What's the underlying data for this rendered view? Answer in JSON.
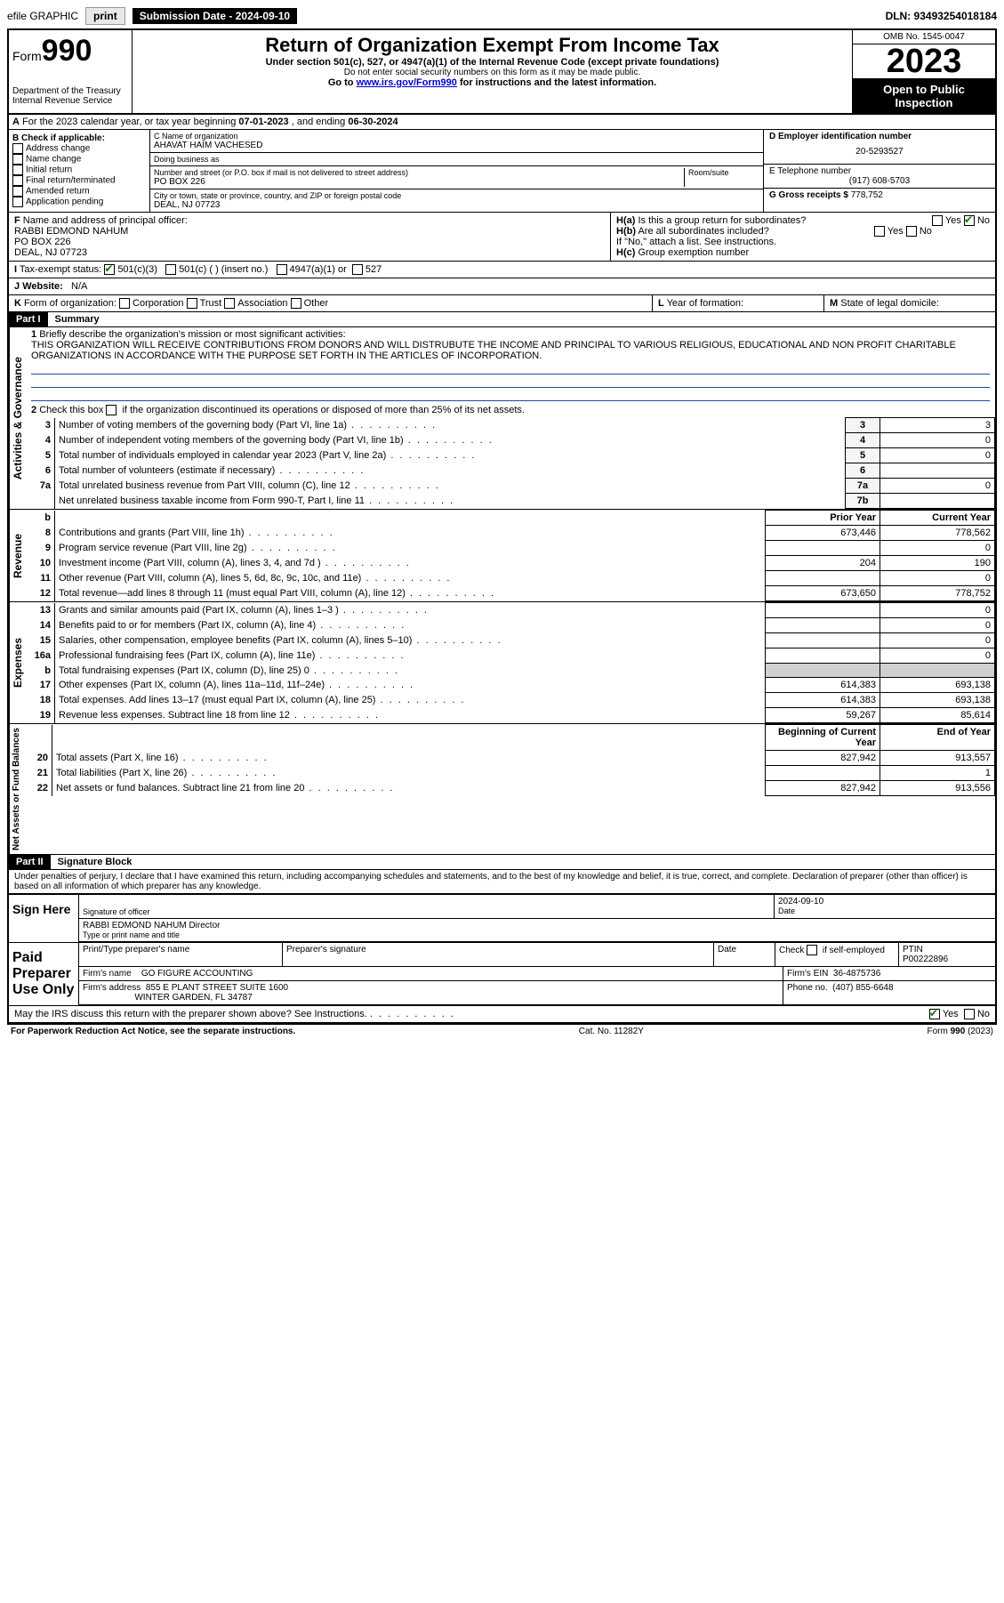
{
  "topbar": {
    "efile": "efile GRAPHIC",
    "print": "print",
    "submission": "Submission Date - 2024-09-10",
    "dln": "DLN: 93493254018184"
  },
  "header": {
    "form_prefix": "Form",
    "form_number": "990",
    "dept": "Department of the Treasury",
    "irs": "Internal Revenue Service",
    "title": "Return of Organization Exempt From Income Tax",
    "sub1": "Under section 501(c), 527, or 4947(a)(1) of the Internal Revenue Code (except private foundations)",
    "sub2": "Do not enter social security numbers on this form as it may be made public.",
    "sub3_pre": "Go to ",
    "sub3_link": "www.irs.gov/Form990",
    "sub3_post": " for instructions and the latest information.",
    "omb": "OMB No. 1545-0047",
    "year": "2023",
    "inspection": "Open to Public Inspection"
  },
  "row_a": {
    "label": "A",
    "text_pre": "For the 2023 calendar year, or tax year beginning ",
    "begin": "07-01-2023",
    "mid": " , and ending ",
    "end": "06-30-2024"
  },
  "col_b": {
    "label": "B Check if applicable:",
    "items": [
      "Address change",
      "Name change",
      "Initial return",
      "Final return/terminated",
      "Amended return",
      "Application pending"
    ]
  },
  "col_c": {
    "name_label": "C Name of organization",
    "name": "AHAVAT HAIM VACHESED",
    "dba_label": "Doing business as",
    "dba": "",
    "addr_label": "Number and street (or P.O. box if mail is not delivered to street address)",
    "room_label": "Room/suite",
    "addr": "PO BOX 226",
    "city_label": "City or town, state or province, country, and ZIP or foreign postal code",
    "city": "DEAL, NJ  07723"
  },
  "col_d": {
    "ein_label": "D Employer identification number",
    "ein": "20-5293527",
    "tel_label": "E Telephone number",
    "tel": "(917) 608-5703",
    "gross_label": "G Gross receipts $",
    "gross": "778,752"
  },
  "row_f": {
    "label": "F",
    "text": "Name and address of principal officer:",
    "name": "RABBI EDMOND NAHUM",
    "addr1": "PO BOX 226",
    "addr2": "DEAL, NJ  07723"
  },
  "row_h": {
    "ha_label": "H(a)",
    "ha_text": "Is this a group return for subordinates?",
    "ha_yes": "Yes",
    "ha_no": "No",
    "hb_label": "H(b)",
    "hb_text": "Are all subordinates included?",
    "hb_note": "If \"No,\" attach a list. See instructions.",
    "hc_label": "H(c)",
    "hc_text": "Group exemption number"
  },
  "row_i": {
    "label": "I",
    "text": "Tax-exempt status:",
    "opt1": "501(c)(3)",
    "opt2": "501(c) (  ) (insert no.)",
    "opt3": "4947(a)(1) or",
    "opt4": "527"
  },
  "row_j": {
    "label": "J",
    "text": "Website:",
    "val": "N/A"
  },
  "row_k": {
    "label": "K",
    "text": "Form of organization:",
    "opts": [
      "Corporation",
      "Trust",
      "Association",
      "Other"
    ]
  },
  "row_l": {
    "label": "L",
    "text": "Year of formation:"
  },
  "row_m": {
    "label": "M",
    "text": "State of legal domicile:"
  },
  "part1": {
    "header": "Part I",
    "title": "Summary"
  },
  "summary": {
    "q1_label": "1",
    "q1_text": "Briefly describe the organization's mission or most significant activities:",
    "q1_val": "THIS ORGANIZATION WILL RECEIVE CONTRIBUTIONS FROM DONORS AND WILL DISTRUBUTE THE INCOME AND PRINCIPAL TO VARIOUS RELIGIOUS, EDUCATIONAL AND NON PROFIT CHARITABLE ORGANIZATIONS IN ACCORDANCE WITH THE PURPOSE SET FORTH IN THE ARTICLES OF INCORPORATION.",
    "q2_label": "2",
    "q2_text": "Check this box      if the organization discontinued its operations or disposed of more than 25% of its net assets."
  },
  "gov_rows": [
    {
      "n": "3",
      "desc": "Number of voting members of the governing body (Part VI, line 1a)",
      "box": "3",
      "val": "3"
    },
    {
      "n": "4",
      "desc": "Number of independent voting members of the governing body (Part VI, line 1b)",
      "box": "4",
      "val": "0"
    },
    {
      "n": "5",
      "desc": "Total number of individuals employed in calendar year 2023 (Part V, line 2a)",
      "box": "5",
      "val": "0"
    },
    {
      "n": "6",
      "desc": "Total number of volunteers (estimate if necessary)",
      "box": "6",
      "val": ""
    },
    {
      "n": "7a",
      "desc": "Total unrelated business revenue from Part VIII, column (C), line 12",
      "box": "7a",
      "val": "0"
    },
    {
      "n": "",
      "desc": "Net unrelated business taxable income from Form 990-T, Part I, line 11",
      "box": "7b",
      "val": ""
    }
  ],
  "rev_header": {
    "b": "b",
    "prior": "Prior Year",
    "current": "Current Year"
  },
  "rev_rows": [
    {
      "n": "8",
      "desc": "Contributions and grants (Part VIII, line 1h)",
      "prior": "673,446",
      "curr": "778,562"
    },
    {
      "n": "9",
      "desc": "Program service revenue (Part VIII, line 2g)",
      "prior": "",
      "curr": "0"
    },
    {
      "n": "10",
      "desc": "Investment income (Part VIII, column (A), lines 3, 4, and 7d )",
      "prior": "204",
      "curr": "190"
    },
    {
      "n": "11",
      "desc": "Other revenue (Part VIII, column (A), lines 5, 6d, 8c, 9c, 10c, and 11e)",
      "prior": "",
      "curr": "0"
    },
    {
      "n": "12",
      "desc": "Total revenue—add lines 8 through 11 (must equal Part VIII, column (A), line 12)",
      "prior": "673,650",
      "curr": "778,752"
    }
  ],
  "exp_rows": [
    {
      "n": "13",
      "desc": "Grants and similar amounts paid (Part IX, column (A), lines 1–3 )",
      "prior": "",
      "curr": "0"
    },
    {
      "n": "14",
      "desc": "Benefits paid to or for members (Part IX, column (A), line 4)",
      "prior": "",
      "curr": "0"
    },
    {
      "n": "15",
      "desc": "Salaries, other compensation, employee benefits (Part IX, column (A), lines 5–10)",
      "prior": "",
      "curr": "0"
    },
    {
      "n": "16a",
      "desc": "Professional fundraising fees (Part IX, column (A), line 11e)",
      "prior": "",
      "curr": "0"
    },
    {
      "n": "b",
      "desc": "Total fundraising expenses (Part IX, column (D), line 25) 0",
      "prior": "GREY",
      "curr": "GREY"
    },
    {
      "n": "17",
      "desc": "Other expenses (Part IX, column (A), lines 11a–11d, 11f–24e)",
      "prior": "614,383",
      "curr": "693,138"
    },
    {
      "n": "18",
      "desc": "Total expenses. Add lines 13–17 (must equal Part IX, column (A), line 25)",
      "prior": "614,383",
      "curr": "693,138"
    },
    {
      "n": "19",
      "desc": "Revenue less expenses. Subtract line 18 from line 12",
      "prior": "59,267",
      "curr": "85,614"
    }
  ],
  "net_header": {
    "prior": "Beginning of Current Year",
    "current": "End of Year"
  },
  "net_rows": [
    {
      "n": "20",
      "desc": "Total assets (Part X, line 16)",
      "prior": "827,942",
      "curr": "913,557"
    },
    {
      "n": "21",
      "desc": "Total liabilities (Part X, line 26)",
      "prior": "",
      "curr": "1"
    },
    {
      "n": "22",
      "desc": "Net assets or fund balances. Subtract line 21 from line 20",
      "prior": "827,942",
      "curr": "913,556"
    }
  ],
  "part2": {
    "header": "Part II",
    "title": "Signature Block",
    "penalty": "Under penalties of perjury, I declare that I have examined this return, including accompanying schedules and statements, and to the best of my knowledge and belief, it is true, correct, and complete. Declaration of preparer (other than officer) is based on all information of which preparer has any knowledge."
  },
  "sign": {
    "label": "Sign Here",
    "sig_label": "Signature of officer",
    "date_label": "Date",
    "date": "2024-09-10",
    "name": "RABBI EDMOND NAHUM  Director",
    "name_label": "Type or print name and title"
  },
  "preparer": {
    "label": "Paid Preparer Use Only",
    "name_label": "Print/Type preparer's name",
    "sig_label": "Preparer's signature",
    "date_label": "Date",
    "check_label": "Check        if self-employed",
    "ptin_label": "PTIN",
    "ptin": "P00222896",
    "firm_name_label": "Firm's name",
    "firm_name": "GO FIGURE ACCOUNTING",
    "firm_ein_label": "Firm's EIN",
    "firm_ein": "36-4875736",
    "firm_addr_label": "Firm's address",
    "firm_addr1": "855 E PLANT STREET SUITE 1600",
    "firm_addr2": "WINTER GARDEN, FL  34787",
    "phone_label": "Phone no.",
    "phone": "(407) 855-6648"
  },
  "discuss": {
    "text": "May the IRS discuss this return with the preparer shown above? See Instructions.",
    "yes": "Yes",
    "no": "No"
  },
  "footer": {
    "left": "For Paperwork Reduction Act Notice, see the separate instructions.",
    "mid": "Cat. No. 11282Y",
    "right_pre": "Form ",
    "right_form": "990",
    "right_post": " (2023)"
  },
  "vlabels": {
    "gov": "Activities & Governance",
    "rev": "Revenue",
    "exp": "Expenses",
    "net": "Net Assets or Fund Balances"
  }
}
